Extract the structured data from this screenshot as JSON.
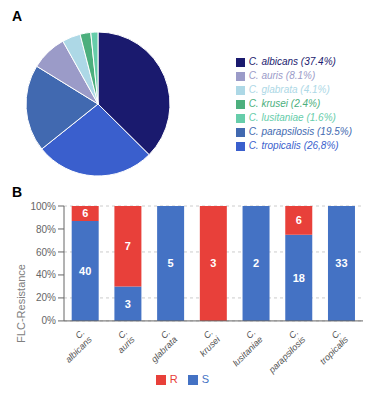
{
  "chart_data": [
    {
      "type": "pie",
      "title": "A",
      "categories": [
        "C. albicans (37.4%)",
        "C. tropicalis (26,8%)",
        "C. parapsilosis (19.5%)",
        "C. auris (8.1%)",
        "C. glabrata (4.1%)",
        "C. krusei (2.4%)",
        "C. lusitaniae (1.6%)"
      ],
      "values": [
        37.4,
        26.8,
        19.5,
        8.1,
        4.1,
        2.4,
        1.6
      ],
      "colors": [
        "#1a1a6e",
        "#3a5fcd",
        "#4169b0",
        "#9b9bc8",
        "#add8e6",
        "#4caf7d",
        "#66cdaa"
      ],
      "legend": "right"
    },
    {
      "type": "bar",
      "title": "B",
      "stacked": true,
      "y_label": "FLC-Resistance",
      "categories": [
        "C. albicans",
        "C. auris",
        "C. glabrata",
        "C. krusei",
        "C. lusitaniae",
        "C. parapsilosis",
        "C. tropicalis"
      ],
      "series": [
        {
          "name": "S",
          "color": "#4472c4",
          "values": [
            86.96,
            30.0,
            100.0,
            0.0,
            100.0,
            75.0,
            100.0
          ],
          "counts": [
            40,
            3,
            5,
            0,
            2,
            18,
            33
          ]
        },
        {
          "name": "R",
          "color": "#e8403a",
          "values": [
            13.04,
            70.0,
            0.0,
            100.0,
            0.0,
            25.0,
            0.0
          ],
          "counts": [
            6,
            7,
            0,
            3,
            0,
            6,
            0
          ]
        }
      ],
      "ylim": [
        0,
        100
      ],
      "yticks": [
        {
          "value": 0,
          "label": "0%"
        },
        {
          "value": 20,
          "label": "20%"
        },
        {
          "value": 40,
          "label": "40%"
        },
        {
          "value": 60,
          "label": "60%"
        },
        {
          "value": 80,
          "label": "80%"
        },
        {
          "value": 100,
          "label": "100%"
        }
      ],
      "grid": true,
      "legend": "bottom"
    }
  ]
}
